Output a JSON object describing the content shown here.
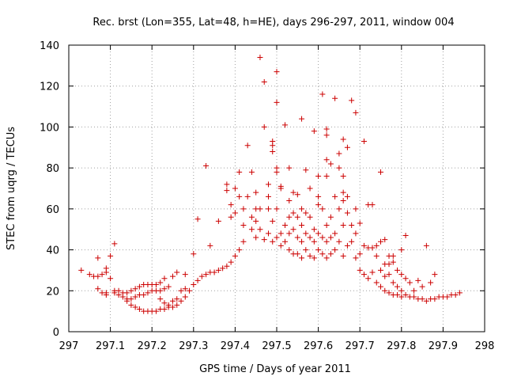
{
  "chart_data": {
    "type": "scatter",
    "title": "Rec. brst (Lon=355, Lat=48, h=HE), days 296-297, 2011, window 004",
    "xlabel": "GPS time / Days of year 2011",
    "ylabel": "STEC from uqrg / TECUs",
    "xlim": [
      297,
      298
    ],
    "ylim": [
      0,
      140
    ],
    "x_ticks": [
      "297",
      "297.1",
      "297.2",
      "297.3",
      "297.4",
      "297.5",
      "297.6",
      "297.7",
      "297.8",
      "297.9",
      "298"
    ],
    "y_ticks": [
      "0",
      "20",
      "40",
      "60",
      "80",
      "100",
      "120",
      "140"
    ],
    "grid": true,
    "marker": "+",
    "color": "#cc0000",
    "points": [
      [
        297.03,
        30
      ],
      [
        297.05,
        28
      ],
      [
        297.06,
        27
      ],
      [
        297.07,
        27
      ],
      [
        297.07,
        36
      ],
      [
        297.08,
        28
      ],
      [
        297.09,
        29
      ],
      [
        297.09,
        31
      ],
      [
        297.1,
        26
      ],
      [
        297.1,
        37
      ],
      [
        297.11,
        43
      ],
      [
        297.07,
        21
      ],
      [
        297.08,
        19
      ],
      [
        297.09,
        19
      ],
      [
        297.11,
        20
      ],
      [
        297.12,
        20
      ],
      [
        297.13,
        19
      ],
      [
        297.14,
        19
      ],
      [
        297.15,
        20
      ],
      [
        297.16,
        21
      ],
      [
        297.17,
        22
      ],
      [
        297.18,
        23
      ],
      [
        297.19,
        23
      ],
      [
        297.2,
        23
      ],
      [
        297.21,
        23
      ],
      [
        297.22,
        24
      ],
      [
        297.23,
        26
      ],
      [
        297.25,
        27
      ],
      [
        297.26,
        29
      ],
      [
        297.09,
        18
      ],
      [
        297.11,
        19
      ],
      [
        297.12,
        18
      ],
      [
        297.13,
        17
      ],
      [
        297.14,
        16
      ],
      [
        297.15,
        16
      ],
      [
        297.16,
        17
      ],
      [
        297.17,
        18
      ],
      [
        297.18,
        18
      ],
      [
        297.19,
        19
      ],
      [
        297.2,
        20
      ],
      [
        297.21,
        20
      ],
      [
        297.22,
        20
      ],
      [
        297.23,
        21
      ],
      [
        297.24,
        22
      ],
      [
        297.14,
        15
      ],
      [
        297.15,
        13
      ],
      [
        297.16,
        12
      ],
      [
        297.17,
        11
      ],
      [
        297.18,
        10
      ],
      [
        297.19,
        10
      ],
      [
        297.2,
        10
      ],
      [
        297.21,
        10
      ],
      [
        297.22,
        11
      ],
      [
        297.23,
        11
      ],
      [
        297.24,
        12
      ],
      [
        297.25,
        12
      ],
      [
        297.26,
        13
      ],
      [
        297.27,
        15
      ],
      [
        297.28,
        17
      ],
      [
        297.22,
        16
      ],
      [
        297.23,
        14
      ],
      [
        297.24,
        13
      ],
      [
        297.25,
        15
      ],
      [
        297.26,
        16
      ],
      [
        297.27,
        20
      ],
      [
        297.28,
        21
      ],
      [
        297.29,
        20
      ],
      [
        297.3,
        23
      ],
      [
        297.31,
        25
      ],
      [
        297.28,
        28
      ],
      [
        297.3,
        38
      ],
      [
        297.31,
        55
      ],
      [
        297.33,
        81
      ],
      [
        297.34,
        42
      ],
      [
        297.32,
        27
      ],
      [
        297.33,
        28
      ],
      [
        297.34,
        29
      ],
      [
        297.35,
        29
      ],
      [
        297.36,
        30
      ],
      [
        297.37,
        31
      ],
      [
        297.38,
        32
      ],
      [
        297.39,
        34
      ],
      [
        297.4,
        37
      ],
      [
        297.41,
        40
      ],
      [
        297.36,
        54
      ],
      [
        297.38,
        69
      ],
      [
        297.38,
        72
      ],
      [
        297.39,
        56
      ],
      [
        297.39,
        62
      ],
      [
        297.4,
        58
      ],
      [
        297.4,
        70
      ],
      [
        297.41,
        66
      ],
      [
        297.41,
        78
      ],
      [
        297.42,
        44
      ],
      [
        297.42,
        52
      ],
      [
        297.42,
        60
      ],
      [
        297.43,
        91
      ],
      [
        297.43,
        66
      ],
      [
        297.44,
        50
      ],
      [
        297.44,
        56
      ],
      [
        297.44,
        78
      ],
      [
        297.45,
        46
      ],
      [
        297.45,
        54
      ],
      [
        297.45,
        60
      ],
      [
        297.45,
        68
      ],
      [
        297.46,
        134
      ],
      [
        297.46,
        50
      ],
      [
        297.46,
        60
      ],
      [
        297.47,
        45
      ],
      [
        297.47,
        100
      ],
      [
        297.47,
        122
      ],
      [
        297.48,
        48
      ],
      [
        297.48,
        60
      ],
      [
        297.48,
        66
      ],
      [
        297.48,
        72
      ],
      [
        297.49,
        44
      ],
      [
        297.49,
        54
      ],
      [
        297.49,
        88
      ],
      [
        297.49,
        91
      ],
      [
        297.49,
        93
      ],
      [
        297.5,
        46
      ],
      [
        297.5,
        60
      ],
      [
        297.5,
        78
      ],
      [
        297.5,
        80
      ],
      [
        297.5,
        112
      ],
      [
        297.5,
        127
      ],
      [
        297.51,
        42
      ],
      [
        297.51,
        48
      ],
      [
        297.51,
        70
      ],
      [
        297.51,
        71
      ],
      [
        297.52,
        101
      ],
      [
        297.52,
        44
      ],
      [
        297.52,
        52
      ],
      [
        297.53,
        40
      ],
      [
        297.53,
        48
      ],
      [
        297.53,
        56
      ],
      [
        297.53,
        64
      ],
      [
        297.53,
        80
      ],
      [
        297.54,
        38
      ],
      [
        297.54,
        50
      ],
      [
        297.54,
        58
      ],
      [
        297.54,
        68
      ],
      [
        297.55,
        38
      ],
      [
        297.55,
        46
      ],
      [
        297.55,
        56
      ],
      [
        297.55,
        67
      ],
      [
        297.56,
        104
      ],
      [
        297.56,
        36
      ],
      [
        297.56,
        44
      ],
      [
        297.56,
        52
      ],
      [
        297.56,
        60
      ],
      [
        297.57,
        40
      ],
      [
        297.57,
        48
      ],
      [
        297.57,
        58
      ],
      [
        297.57,
        79
      ],
      [
        297.58,
        37
      ],
      [
        297.58,
        46
      ],
      [
        297.58,
        56
      ],
      [
        297.58,
        70
      ],
      [
        297.59,
        98
      ],
      [
        297.59,
        36
      ],
      [
        297.59,
        44
      ],
      [
        297.59,
        50
      ],
      [
        297.6,
        40
      ],
      [
        297.6,
        48
      ],
      [
        297.6,
        62
      ],
      [
        297.6,
        66
      ],
      [
        297.6,
        76
      ],
      [
        297.61,
        38
      ],
      [
        297.61,
        46
      ],
      [
        297.61,
        60
      ],
      [
        297.61,
        116
      ],
      [
        297.62,
        36
      ],
      [
        297.62,
        44
      ],
      [
        297.62,
        52
      ],
      [
        297.62,
        76
      ],
      [
        297.62,
        84
      ],
      [
        297.62,
        96
      ],
      [
        297.62,
        99
      ],
      [
        297.63,
        38
      ],
      [
        297.63,
        46
      ],
      [
        297.63,
        56
      ],
      [
        297.63,
        82
      ],
      [
        297.64,
        114
      ],
      [
        297.64,
        40
      ],
      [
        297.64,
        48
      ],
      [
        297.64,
        66
      ],
      [
        297.65,
        44
      ],
      [
        297.65,
        60
      ],
      [
        297.65,
        80
      ],
      [
        297.65,
        87
      ],
      [
        297.66,
        37
      ],
      [
        297.66,
        52
      ],
      [
        297.66,
        64
      ],
      [
        297.66,
        68
      ],
      [
        297.66,
        76
      ],
      [
        297.66,
        94
      ],
      [
        297.67,
        42
      ],
      [
        297.67,
        58
      ],
      [
        297.67,
        66
      ],
      [
        297.67,
        90
      ],
      [
        297.68,
        113
      ],
      [
        297.68,
        44
      ],
      [
        297.68,
        52
      ],
      [
        297.69,
        36
      ],
      [
        297.69,
        48
      ],
      [
        297.69,
        60
      ],
      [
        297.69,
        107
      ],
      [
        297.7,
        30
      ],
      [
        297.7,
        38
      ],
      [
        297.7,
        53
      ],
      [
        297.71,
        93
      ],
      [
        297.71,
        28
      ],
      [
        297.71,
        42
      ],
      [
        297.72,
        26
      ],
      [
        297.72,
        41
      ],
      [
        297.72,
        62
      ],
      [
        297.73,
        62
      ],
      [
        297.73,
        29
      ],
      [
        297.73,
        41
      ],
      [
        297.74,
        24
      ],
      [
        297.74,
        37
      ],
      [
        297.74,
        42
      ],
      [
        297.75,
        78
      ],
      [
        297.75,
        22
      ],
      [
        297.75,
        30
      ],
      [
        297.75,
        44
      ],
      [
        297.76,
        20
      ],
      [
        297.76,
        27
      ],
      [
        297.76,
        33
      ],
      [
        297.76,
        45
      ],
      [
        297.77,
        19
      ],
      [
        297.77,
        28
      ],
      [
        297.77,
        33
      ],
      [
        297.77,
        37
      ],
      [
        297.78,
        18
      ],
      [
        297.78,
        24
      ],
      [
        297.78,
        34
      ],
      [
        297.78,
        37
      ],
      [
        297.79,
        18
      ],
      [
        297.79,
        22
      ],
      [
        297.79,
        30
      ],
      [
        297.8,
        17
      ],
      [
        297.8,
        20
      ],
      [
        297.8,
        28
      ],
      [
        297.8,
        40
      ],
      [
        297.81,
        47
      ],
      [
        297.81,
        18
      ],
      [
        297.81,
        26
      ],
      [
        297.82,
        17
      ],
      [
        297.82,
        24
      ],
      [
        297.83,
        17
      ],
      [
        297.83,
        20
      ],
      [
        297.84,
        16
      ],
      [
        297.84,
        25
      ],
      [
        297.85,
        16
      ],
      [
        297.85,
        22
      ],
      [
        297.86,
        42
      ],
      [
        297.86,
        15
      ],
      [
        297.87,
        16
      ],
      [
        297.87,
        24
      ],
      [
        297.88,
        16
      ],
      [
        297.88,
        28
      ],
      [
        297.89,
        17
      ],
      [
        297.9,
        17
      ],
      [
        297.91,
        17
      ],
      [
        297.92,
        18
      ],
      [
        297.93,
        18
      ],
      [
        297.94,
        19
      ]
    ]
  }
}
